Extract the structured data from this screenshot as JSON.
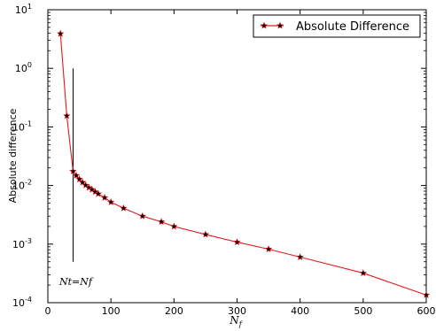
{
  "chart_data": {
    "type": "line",
    "title": "",
    "xlabel": "N",
    "xlabel_sub": "f",
    "ylabel": "Absolute difference",
    "xlim": [
      0,
      600
    ],
    "ylim": [
      0.0001,
      10
    ],
    "yscale": "log",
    "grid": false,
    "legend_position": "top-right",
    "x_ticks": [
      "0",
      "100",
      "200",
      "300",
      "400",
      "500",
      "600"
    ],
    "y_ticks": [
      {
        "base": "10",
        "exp": "-4"
      },
      {
        "base": "10",
        "exp": "-3"
      },
      {
        "base": "10",
        "exp": "-2"
      },
      {
        "base": "10",
        "exp": "-1"
      },
      {
        "base": "10",
        "exp": "0"
      },
      {
        "base": "10",
        "exp": "1"
      }
    ],
    "series": [
      {
        "name": "Absolute Difference",
        "color": "#e41a1c",
        "marker": "star",
        "x": [
          20,
          30,
          40,
          45,
          50,
          55,
          60,
          65,
          70,
          75,
          80,
          90,
          100,
          120,
          150,
          180,
          200,
          250,
          300,
          350,
          400,
          500,
          600
        ],
        "y": [
          3.9,
          0.155,
          0.0175,
          0.0148,
          0.0128,
          0.0113,
          0.0101,
          0.0092,
          0.0085,
          0.0078,
          0.0072,
          0.0062,
          0.0052,
          0.0041,
          0.003,
          0.0024,
          0.002,
          0.00146,
          0.00108,
          0.00082,
          0.0006,
          0.00032,
          0.000135
        ]
      }
    ],
    "annotation": {
      "text": "Nt=Nf",
      "x": 40,
      "y_range": [
        0.0005,
        1
      ]
    }
  }
}
